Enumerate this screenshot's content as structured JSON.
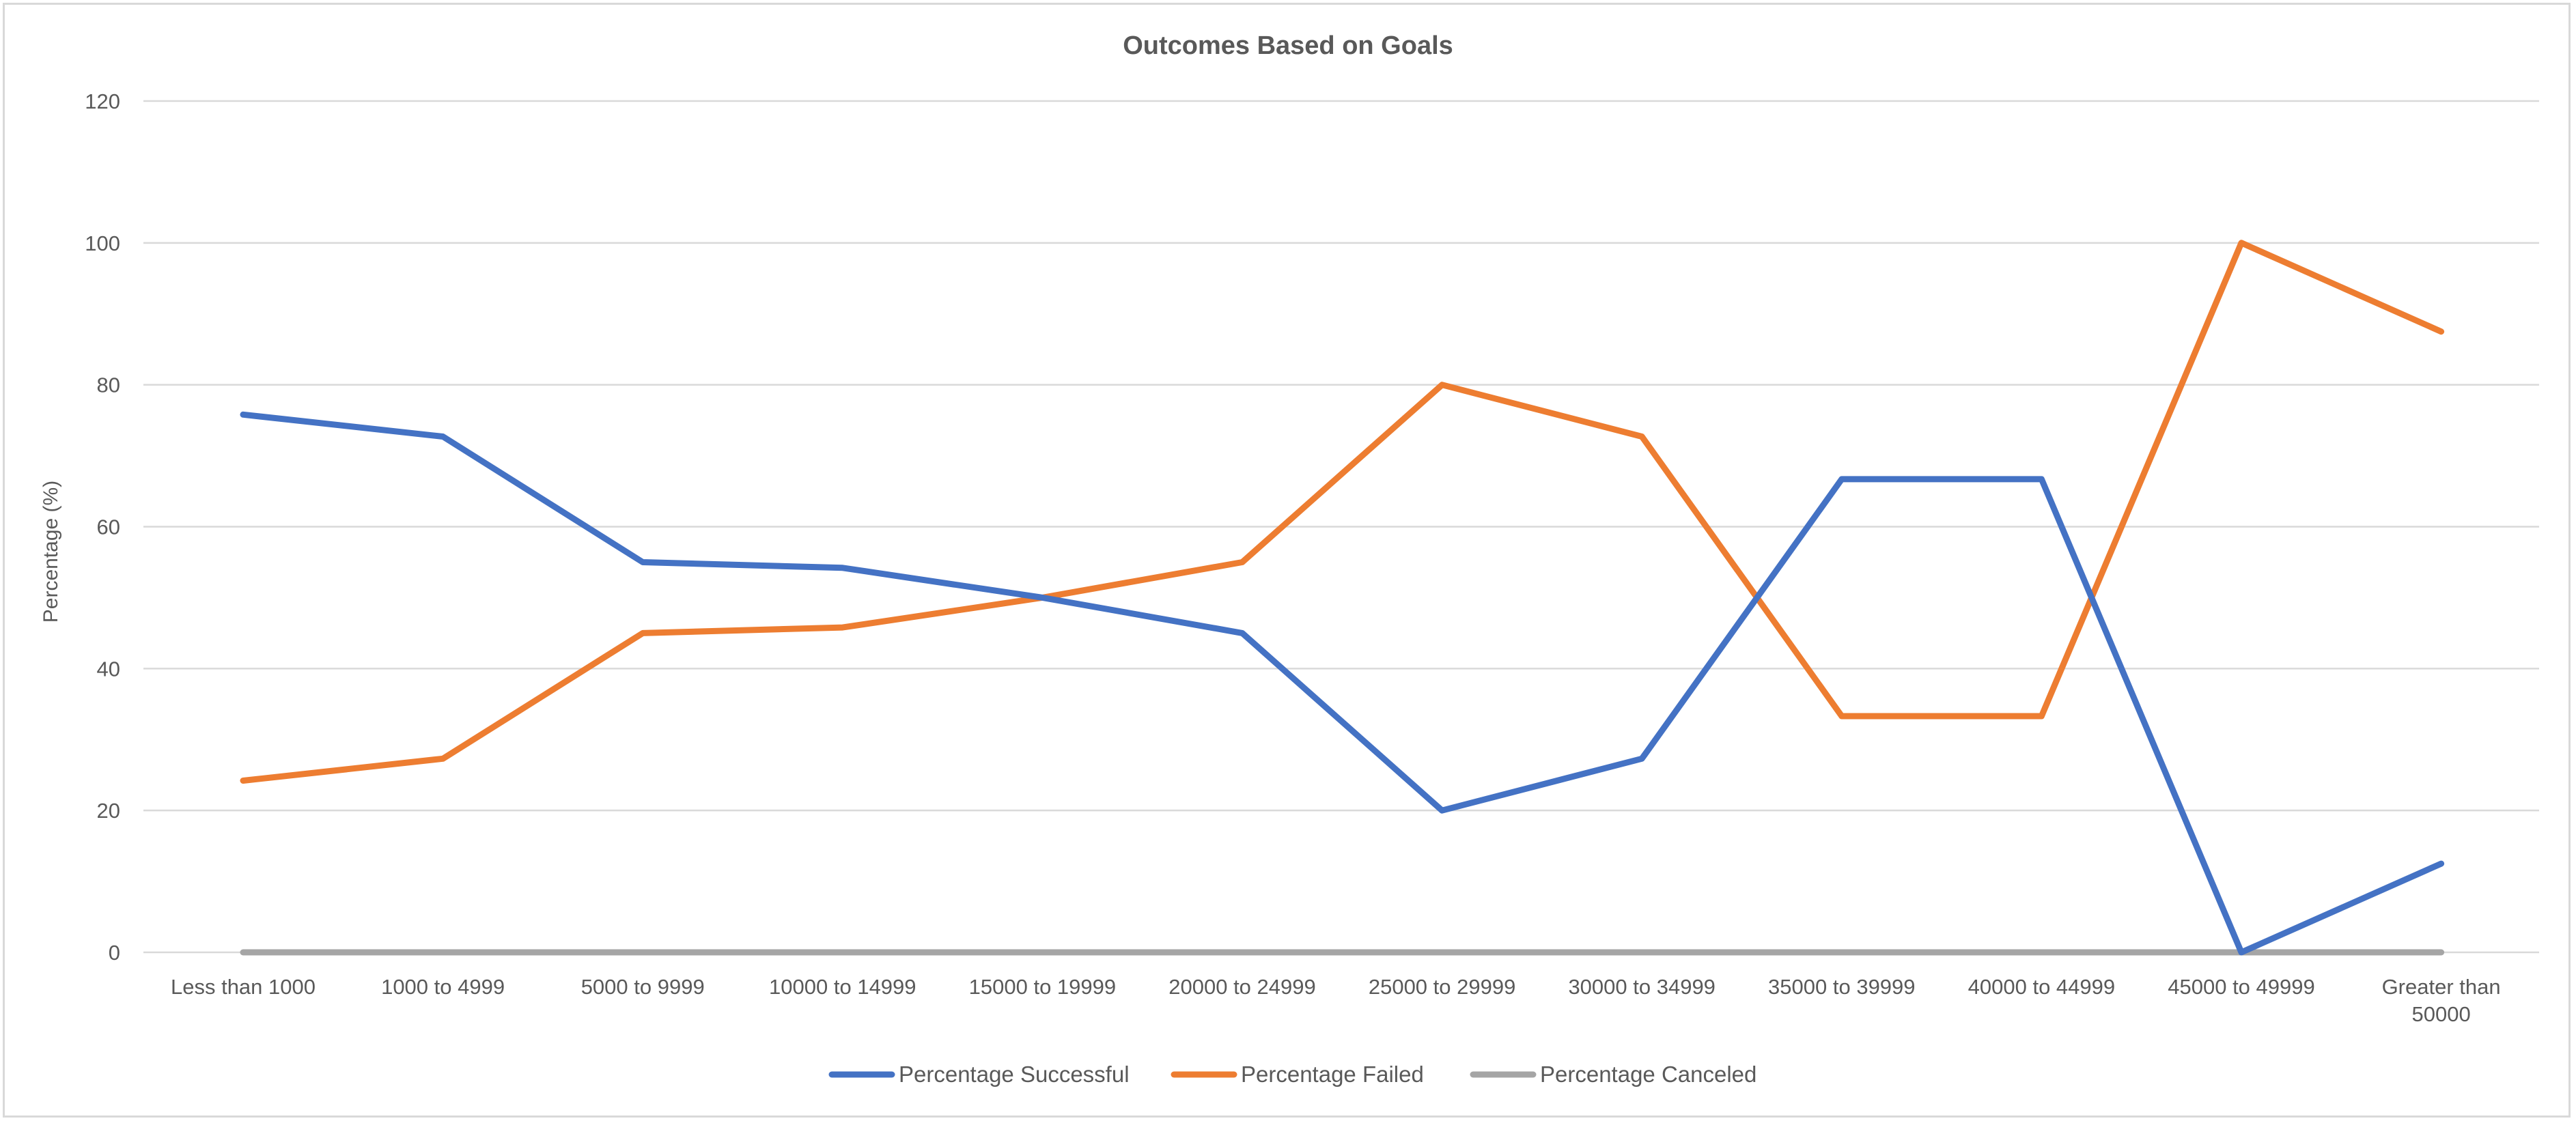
{
  "chart_data": {
    "type": "line",
    "title": "Outcomes Based on Goals",
    "xlabel": "",
    "ylabel": "Percentage (%)",
    "ylim": [
      0,
      120
    ],
    "yticks": [
      0,
      20,
      40,
      60,
      80,
      100,
      120
    ],
    "grid": true,
    "legend_position": "bottom",
    "categories": [
      "Less than 1000",
      "1000 to 4999",
      "5000 to 9999",
      "10000 to 14999",
      "15000 to 19999",
      "20000 to 24999",
      "25000 to 29999",
      "30000 to 34999",
      "35000 to 39999",
      "40000 to 44999",
      "45000 to 49999",
      "Greater than 50000"
    ],
    "series": [
      {
        "name": "Percentage Successful",
        "color": "#4472c4",
        "values": [
          75.8,
          72.7,
          55.0,
          54.2,
          50.0,
          45.0,
          20.0,
          27.3,
          66.7,
          66.7,
          0,
          12.5
        ]
      },
      {
        "name": "Percentage Failed",
        "color": "#ed7d31",
        "values": [
          24.2,
          27.3,
          45.0,
          45.8,
          50.0,
          55.0,
          80.0,
          72.7,
          33.3,
          33.3,
          100,
          87.5
        ]
      },
      {
        "name": "Percentage Canceled",
        "color": "#a5a5a5",
        "values": [
          0,
          0,
          0,
          0,
          0,
          0,
          0,
          0,
          0,
          0,
          0,
          0
        ]
      }
    ]
  }
}
